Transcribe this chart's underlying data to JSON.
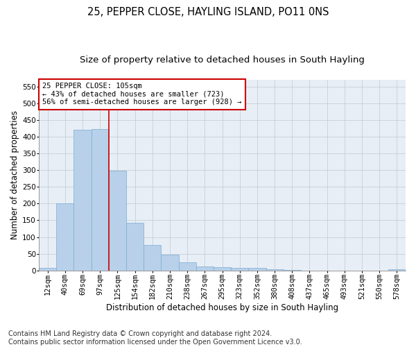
{
  "title": "25, PEPPER CLOSE, HAYLING ISLAND, PO11 0NS",
  "subtitle": "Size of property relative to detached houses in South Hayling",
  "xlabel": "Distribution of detached houses by size in South Hayling",
  "ylabel": "Number of detached properties",
  "categories": [
    "12sqm",
    "40sqm",
    "69sqm",
    "97sqm",
    "125sqm",
    "154sqm",
    "182sqm",
    "210sqm",
    "238sqm",
    "267sqm",
    "295sqm",
    "323sqm",
    "352sqm",
    "380sqm",
    "408sqm",
    "437sqm",
    "465sqm",
    "493sqm",
    "521sqm",
    "550sqm",
    "578sqm"
  ],
  "values": [
    8,
    200,
    420,
    422,
    298,
    143,
    77,
    48,
    24,
    12,
    9,
    8,
    7,
    3,
    2,
    0,
    0,
    0,
    0,
    0,
    4
  ],
  "bar_color": "#b8d0ea",
  "bar_edge_color": "#7aadd4",
  "vline_x": 3.5,
  "vline_color": "#cc0000",
  "annotation_lines": [
    "25 PEPPER CLOSE: 105sqm",
    "← 43% of detached houses are smaller (723)",
    "56% of semi-detached houses are larger (928) →"
  ],
  "annotation_box_color": "#ffffff",
  "annotation_box_edge_color": "#cc0000",
  "ylim": [
    0,
    570
  ],
  "yticks": [
    0,
    50,
    100,
    150,
    200,
    250,
    300,
    350,
    400,
    450,
    500,
    550
  ],
  "footer_line1": "Contains HM Land Registry data © Crown copyright and database right 2024.",
  "footer_line2": "Contains public sector information licensed under the Open Government Licence v3.0.",
  "title_fontsize": 10.5,
  "subtitle_fontsize": 9.5,
  "axis_label_fontsize": 8.5,
  "tick_fontsize": 7.5,
  "annotation_fontsize": 7.5,
  "footer_fontsize": 7,
  "background_color": "#e8eef5"
}
